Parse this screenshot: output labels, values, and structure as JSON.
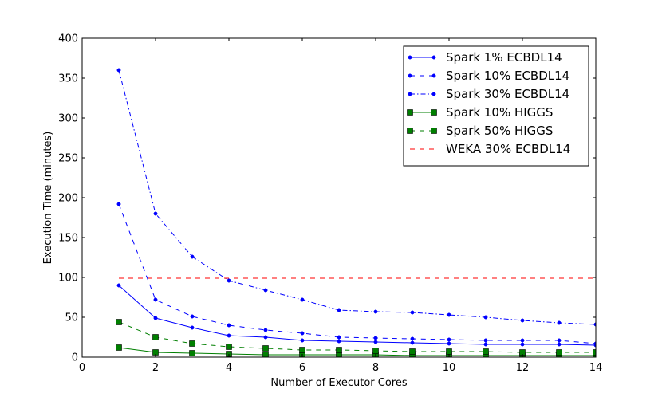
{
  "chart_data": {
    "type": "line",
    "title": "",
    "xlabel": "Number of Executor Cores",
    "ylabel": "Execution Time (minutes)",
    "xlim": [
      0,
      14
    ],
    "ylim": [
      0,
      400
    ],
    "xticks": [
      0,
      2,
      4,
      6,
      8,
      10,
      12,
      14
    ],
    "yticks": [
      0,
      50,
      100,
      150,
      200,
      250,
      300,
      350,
      400
    ],
    "grid": false,
    "legend_position": "top-right",
    "x": [
      1,
      2,
      3,
      4,
      5,
      6,
      7,
      8,
      9,
      10,
      11,
      12,
      13,
      14
    ],
    "series": [
      {
        "name": "Spark 1% ECBDL14",
        "color": "#0000ff",
        "linestyle": "solid",
        "marker": "circle",
        "values": [
          90,
          49,
          37,
          27,
          25,
          21,
          20,
          19,
          18,
          17,
          16,
          16,
          16,
          15
        ]
      },
      {
        "name": "Spark 10% ECBDL14",
        "color": "#0000ff",
        "linestyle": "dashed",
        "marker": "circle",
        "values": [
          192,
          72,
          51,
          40,
          34,
          30,
          25,
          24,
          23,
          22,
          21,
          21,
          21,
          17
        ]
      },
      {
        "name": "Spark 30% ECBDL14",
        "color": "#0000ff",
        "linestyle": "dashdot",
        "marker": "circle",
        "values": [
          360,
          180,
          126,
          96,
          84,
          72,
          59,
          57,
          56,
          53,
          50,
          46,
          43,
          41
        ]
      },
      {
        "name": "Spark 10% HIGGS",
        "color": "#007f00",
        "linestyle": "solid",
        "marker": "square",
        "values": [
          12,
          6,
          5,
          4,
          3,
          3,
          3,
          3,
          2,
          2,
          2,
          2,
          2,
          2
        ]
      },
      {
        "name": "Spark 50% HIGGS",
        "color": "#007f00",
        "linestyle": "dashed",
        "marker": "square",
        "values": [
          44,
          25,
          17,
          13,
          11,
          9,
          9,
          8,
          7,
          7,
          7,
          6,
          6,
          6
        ]
      },
      {
        "name": "WEKA 30% ECBDL14",
        "color": "#ff0000",
        "linestyle": "dashed",
        "marker": "none",
        "values": [
          99,
          99,
          99,
          99,
          99,
          99,
          99,
          99,
          99,
          99,
          99,
          99,
          99,
          99
        ]
      }
    ]
  }
}
